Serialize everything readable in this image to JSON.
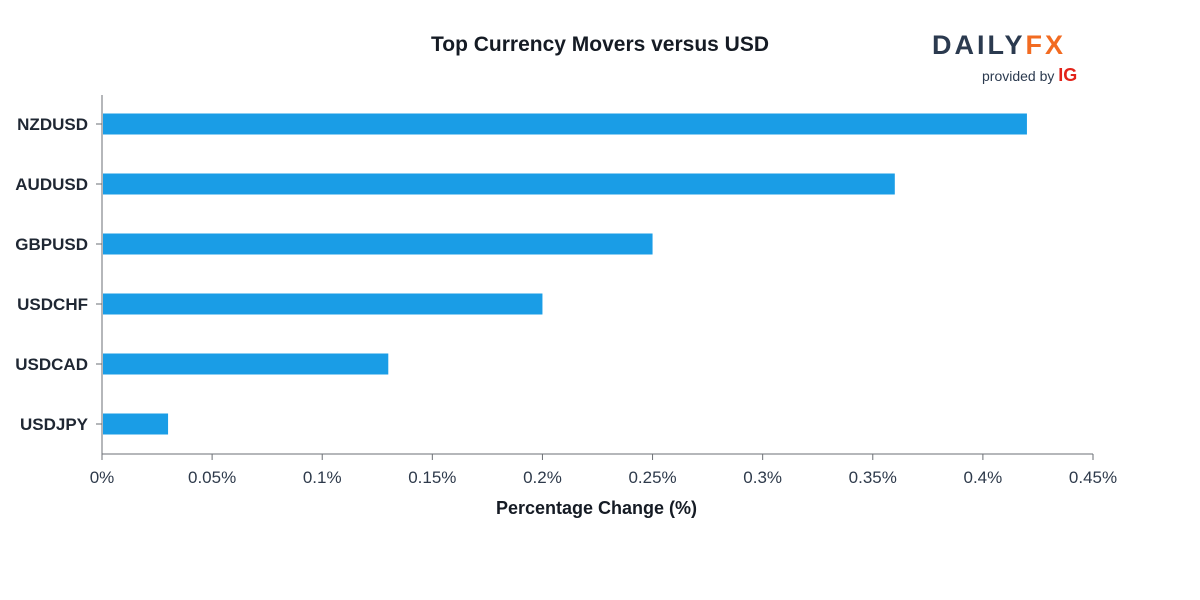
{
  "brand": {
    "logo_text_daily": "DAILY",
    "logo_text_fx": "FX",
    "provided_by": "provided by",
    "provider": "IG",
    "colors": {
      "navy": "#2b3a4f",
      "orange": "#f26b21",
      "red": "#e2231a"
    }
  },
  "chart_data": {
    "type": "bar",
    "orientation": "horizontal",
    "title": "Top Currency Movers versus USD",
    "xlabel": "Percentage Change (%)",
    "ylabel": "",
    "categories": [
      "NZDUSD",
      "AUDUSD",
      "GBPUSD",
      "USDCHF",
      "USDCAD",
      "USDJPY"
    ],
    "values": [
      0.42,
      0.36,
      0.25,
      0.2,
      0.13,
      0.03
    ],
    "xlim": [
      0,
      0.45
    ],
    "xticks": [
      0,
      0.05,
      0.1,
      0.15,
      0.2,
      0.25,
      0.3,
      0.35,
      0.4,
      0.45
    ],
    "xtick_labels": [
      "0%",
      "0.05%",
      "0.1%",
      "0.15%",
      "0.2%",
      "0.25%",
      "0.3%",
      "0.35%",
      "0.4%",
      "0.45%"
    ],
    "bar_color": "#1a9de6",
    "axis_color": "#6b6f75",
    "grid": false,
    "legend": "none"
  }
}
